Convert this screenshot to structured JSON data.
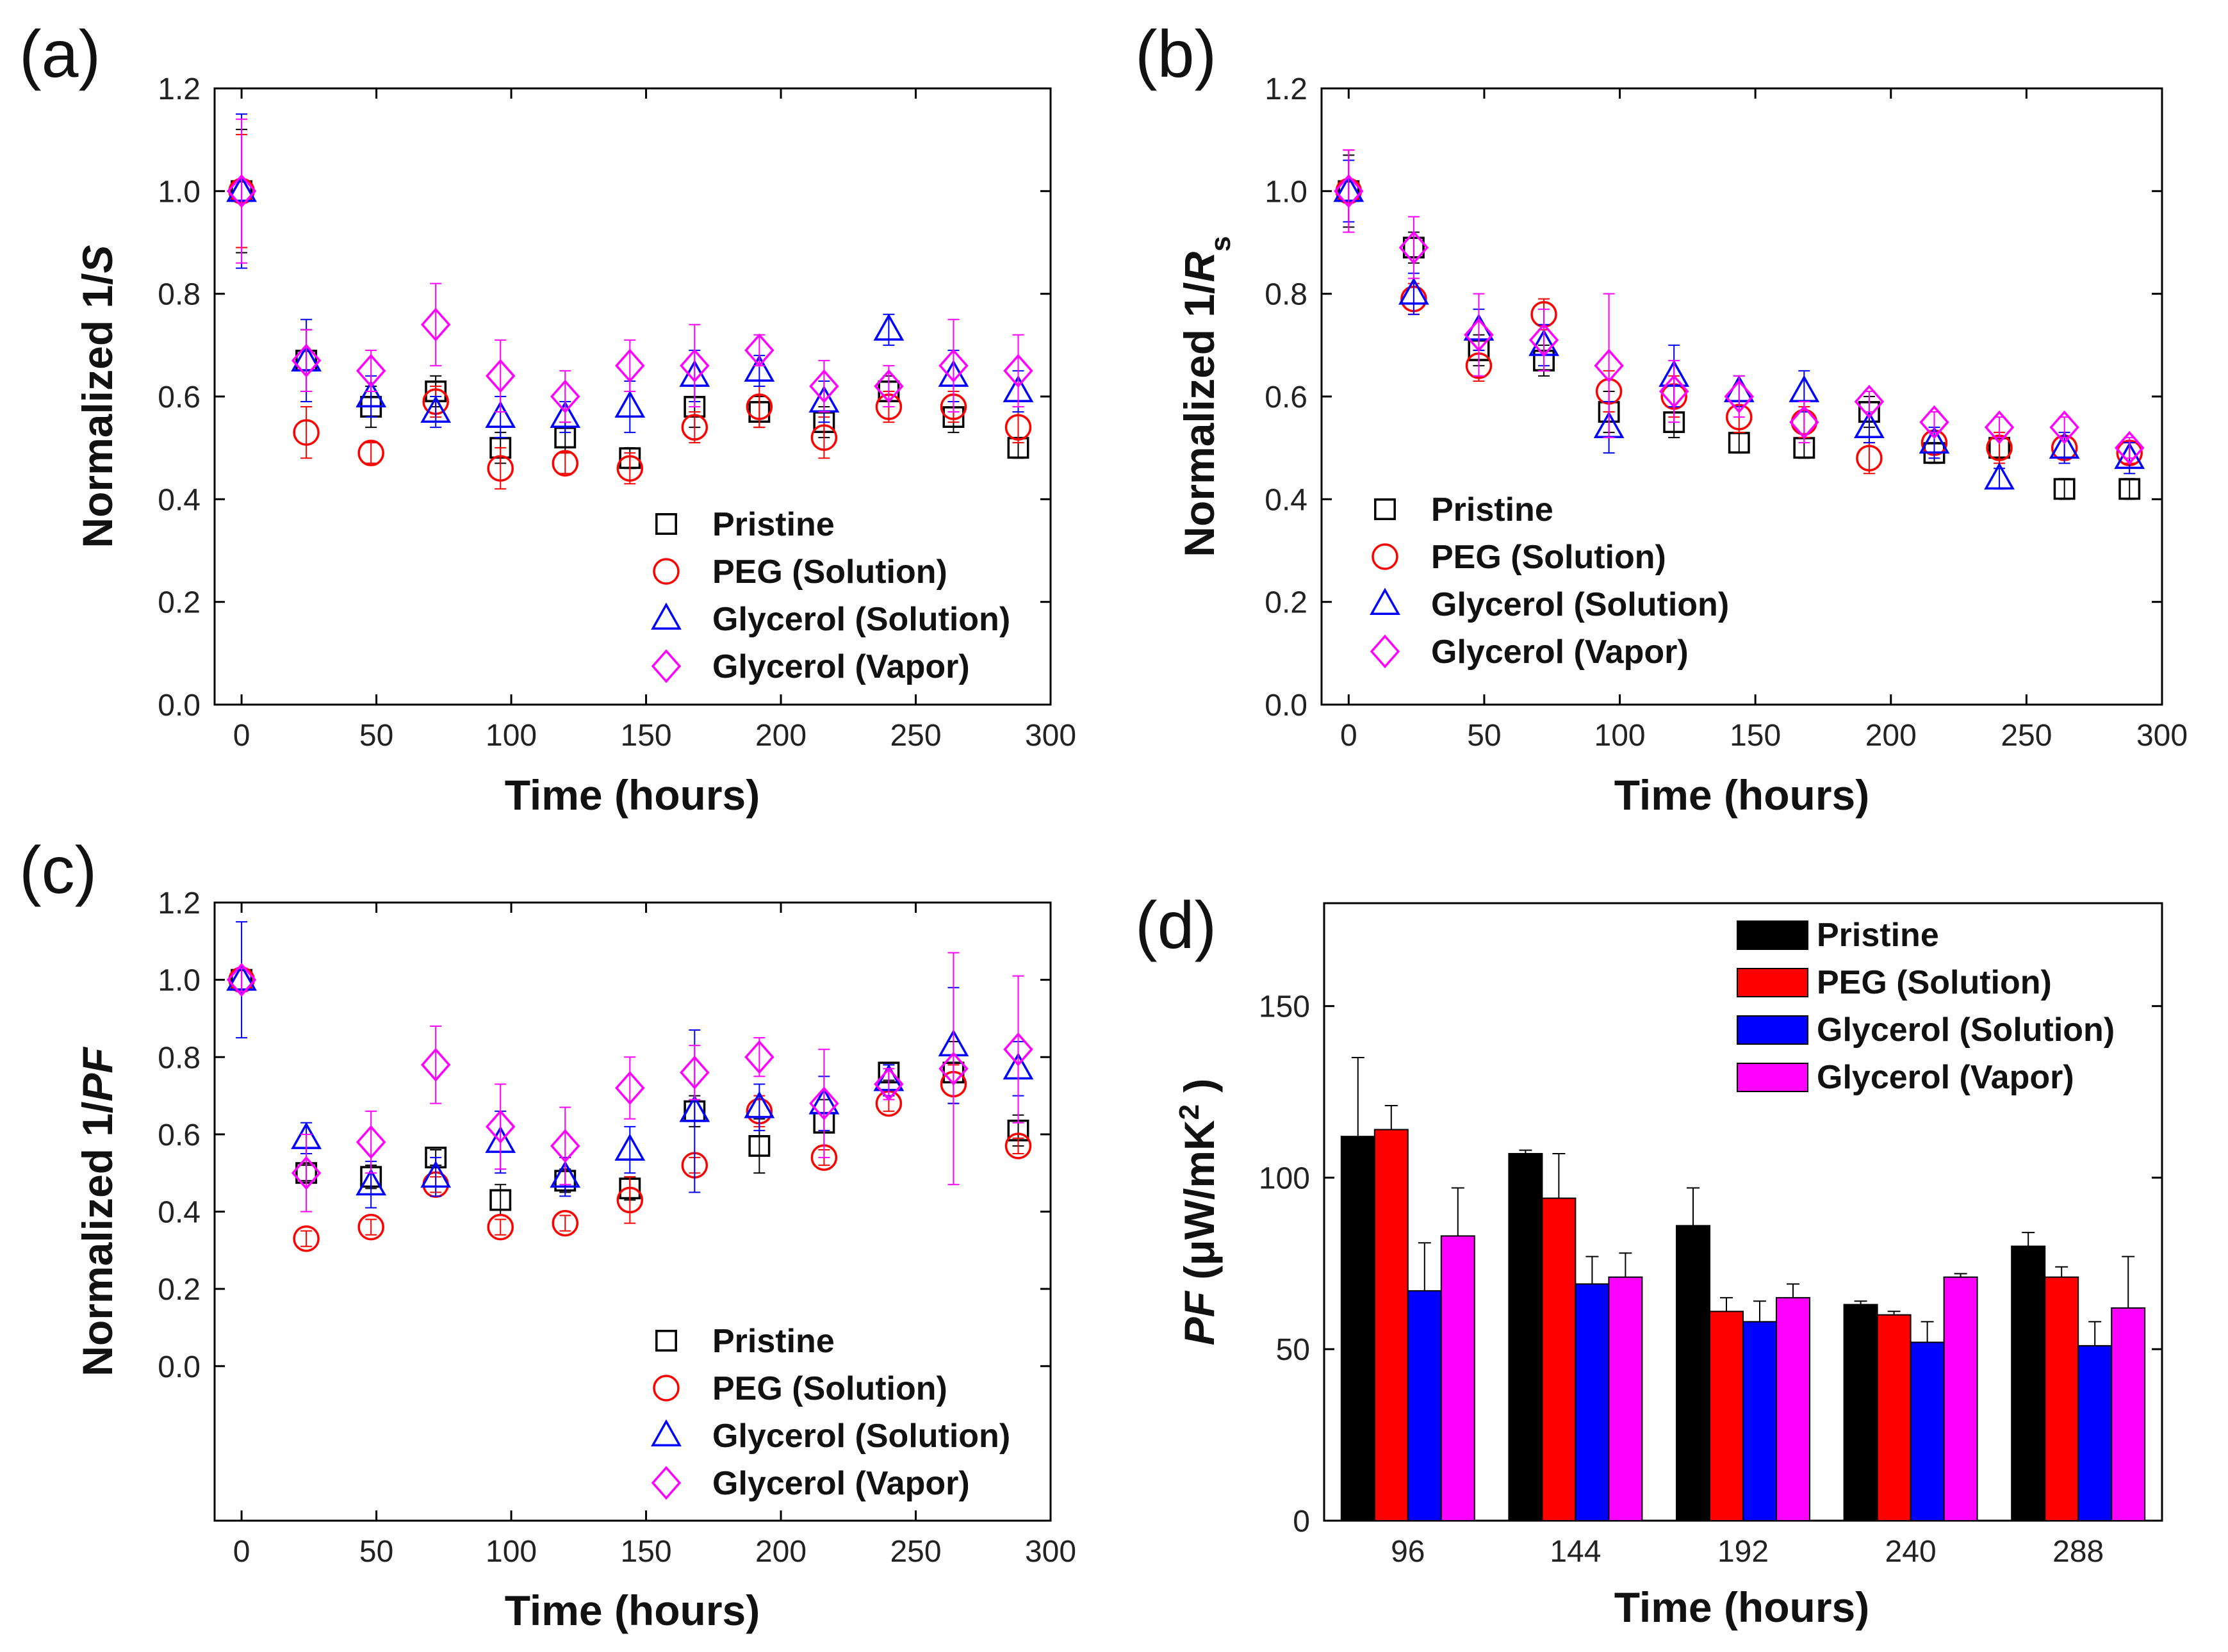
{
  "chart_data": [
    {
      "panel": "(a)",
      "type": "scatter",
      "ylabel": "Normalized 1/S",
      "ylabel_parts": [
        "Normalized 1/",
        "S",
        ""
      ],
      "xlabel": "Time (hours)",
      "xlim": [
        -10,
        300
      ],
      "ylim": [
        0,
        1.2
      ],
      "xticks": [
        "0",
        "50",
        "100",
        "150",
        "200",
        "250",
        "300"
      ],
      "yticks": [
        "0.0",
        "0.2",
        "0.4",
        "0.6",
        "0.8",
        "1.0",
        "1.2"
      ],
      "legend_position": "bottom-right",
      "x": [
        0,
        24,
        48,
        72,
        96,
        120,
        144,
        168,
        192,
        216,
        240,
        264,
        288
      ],
      "series": [
        {
          "name": "Pristine",
          "marker": "square",
          "color": "#000000",
          "values": [
            1.0,
            0.67,
            0.58,
            0.61,
            0.5,
            0.52,
            0.48,
            0.58,
            0.57,
            0.55,
            0.61,
            0.56,
            0.5
          ],
          "errors": [
            0.12,
            0.06,
            0.04,
            0.03,
            0.03,
            0.03,
            0.02,
            0.04,
            0.03,
            0.03,
            0.03,
            0.03,
            0.02
          ]
        },
        {
          "name": "PEG (Solution)",
          "marker": "circle",
          "color": "#ff0000",
          "values": [
            1.0,
            0.53,
            0.49,
            0.59,
            0.46,
            0.47,
            0.46,
            0.54,
            0.58,
            0.52,
            0.58,
            0.58,
            0.54
          ],
          "errors": [
            0.11,
            0.05,
            0.02,
            0.03,
            0.04,
            0.02,
            0.03,
            0.03,
            0.04,
            0.04,
            0.03,
            0.03,
            0.03
          ]
        },
        {
          "name": "Glycerol (Solution)",
          "marker": "triangle",
          "color": "#0000ff",
          "values": [
            1.0,
            0.67,
            0.6,
            0.57,
            0.56,
            0.56,
            0.58,
            0.64,
            0.65,
            0.59,
            0.73,
            0.64,
            0.61
          ],
          "errors": [
            0.15,
            0.08,
            0.04,
            0.03,
            0.04,
            0.03,
            0.05,
            0.05,
            0.03,
            0.04,
            0.03,
            0.05,
            0.04
          ]
        },
        {
          "name": "Glycerol (Vapor)",
          "marker": "diamond",
          "color": "#ff00ff",
          "values": [
            1.0,
            0.67,
            0.65,
            0.74,
            0.64,
            0.6,
            0.66,
            0.66,
            0.69,
            0.62,
            0.62,
            0.66,
            0.65
          ],
          "errors": [
            0.14,
            0.06,
            0.04,
            0.08,
            0.07,
            0.05,
            0.05,
            0.08,
            0.03,
            0.05,
            0.04,
            0.09,
            0.07
          ]
        }
      ]
    },
    {
      "panel": "(b)",
      "type": "scatter",
      "ylabel": "Normalized 1/Rs",
      "ylabel_parts": [
        "Normalized 1/",
        "R",
        "s"
      ],
      "xlabel": "Time (hours)",
      "xlim": [
        -10,
        300
      ],
      "ylim": [
        0,
        1.2
      ],
      "xticks": [
        "0",
        "50",
        "100",
        "150",
        "200",
        "250",
        "300"
      ],
      "yticks": [
        "0.0",
        "0.2",
        "0.4",
        "0.6",
        "0.8",
        "1.0",
        "1.2"
      ],
      "legend_position": "bottom-left",
      "x": [
        0,
        24,
        48,
        72,
        96,
        120,
        144,
        168,
        192,
        216,
        240,
        264,
        288
      ],
      "series": [
        {
          "name": "Pristine",
          "marker": "square",
          "color": "#000000",
          "values": [
            1.0,
            0.89,
            0.69,
            0.67,
            0.57,
            0.55,
            0.51,
            0.5,
            0.57,
            0.49,
            0.5,
            0.42,
            0.42
          ],
          "errors": [
            0.07,
            0.03,
            0.03,
            0.03,
            0.04,
            0.03,
            0.02,
            0.02,
            0.03,
            0.02,
            0.02,
            0.02,
            0.02
          ]
        },
        {
          "name": "PEG (Solution)",
          "marker": "circle",
          "color": "#ff0000",
          "values": [
            1.0,
            0.79,
            0.66,
            0.76,
            0.61,
            0.6,
            0.56,
            0.55,
            0.48,
            0.51,
            0.5,
            0.5,
            0.49
          ],
          "errors": [
            0.08,
            0.03,
            0.03,
            0.03,
            0.04,
            0.04,
            0.03,
            0.03,
            0.03,
            0.02,
            0.03,
            0.02,
            0.02
          ]
        },
        {
          "name": "Glycerol (Solution)",
          "marker": "triangle",
          "color": "#0000ff",
          "values": [
            1.0,
            0.8,
            0.73,
            0.7,
            0.54,
            0.64,
            0.61,
            0.61,
            0.54,
            0.51,
            0.44,
            0.5,
            0.48
          ],
          "errors": [
            0.06,
            0.04,
            0.04,
            0.04,
            0.05,
            0.06,
            0.03,
            0.04,
            0.03,
            0.03,
            0.02,
            0.03,
            0.03
          ]
        },
        {
          "name": "Glycerol (Vapor)",
          "marker": "diamond",
          "color": "#ff00ff",
          "values": [
            1.0,
            0.89,
            0.72,
            0.71,
            0.66,
            0.61,
            0.6,
            0.55,
            0.59,
            0.55,
            0.54,
            0.54,
            0.5
          ],
          "errors": [
            0.08,
            0.06,
            0.08,
            0.06,
            0.14,
            0.06,
            0.04,
            0.04,
            0.02,
            0.02,
            0.02,
            0.02,
            0.02
          ]
        }
      ]
    },
    {
      "panel": "(c)",
      "type": "scatter",
      "ylabel": "Normalized 1/PF",
      "ylabel_parts": [
        "Normalized 1/",
        "PF",
        ""
      ],
      "xlabel": "Time (hours)",
      "xlim": [
        -10,
        300
      ],
      "ylim": [
        -0.4,
        1.2
      ],
      "xticks": [
        "0",
        "50",
        "100",
        "150",
        "200",
        "250",
        "300"
      ],
      "yticks": [
        "0.0",
        "0.2",
        "0.4",
        "0.6",
        "0.8",
        "1.0",
        "1.2"
      ],
      "ytick_values": [
        0.0,
        0.2,
        0.4,
        0.6,
        0.8,
        1.0,
        1.2
      ],
      "legend_position": "bottom-right",
      "x": [
        0,
        24,
        48,
        72,
        96,
        120,
        144,
        168,
        192,
        216,
        240,
        264,
        288
      ],
      "series": [
        {
          "name": "Pristine",
          "marker": "square",
          "color": "#000000",
          "values": [
            1.0,
            0.5,
            0.49,
            0.54,
            0.43,
            0.48,
            0.46,
            0.66,
            0.57,
            0.63,
            0.76,
            0.76,
            0.61
          ],
          "errors": [
            0.03,
            0.02,
            0.03,
            0.02,
            0.04,
            0.03,
            0.03,
            0.04,
            0.07,
            0.06,
            0.02,
            0.08,
            0.04
          ]
        },
        {
          "name": "PEG (Solution)",
          "marker": "circle",
          "color": "#ff0000",
          "values": [
            1.0,
            0.33,
            0.36,
            0.47,
            0.36,
            0.37,
            0.43,
            0.52,
            0.66,
            0.54,
            0.68,
            0.73,
            0.57
          ],
          "errors": [
            0.03,
            0.02,
            0.02,
            0.02,
            0.02,
            0.02,
            0.06,
            0.02,
            0.04,
            0.02,
            0.02,
            0.05,
            0.02
          ]
        },
        {
          "name": "Glycerol (Solution)",
          "marker": "triangle",
          "color": "#0000ff",
          "values": [
            1.0,
            0.59,
            0.47,
            0.49,
            0.58,
            0.49,
            0.56,
            0.66,
            0.67,
            0.68,
            0.74,
            0.83,
            0.77
          ],
          "errors": [
            0.15,
            0.04,
            0.06,
            0.05,
            0.08,
            0.05,
            0.06,
            0.21,
            0.06,
            0.07,
            0.04,
            0.15,
            0.07
          ]
        },
        {
          "name": "Glycerol (Vapor)",
          "marker": "diamond",
          "color": "#ff00ff",
          "values": [
            1.0,
            0.5,
            0.58,
            0.78,
            0.62,
            0.57,
            0.72,
            0.76,
            0.8,
            0.68,
            0.73,
            0.77,
            0.82
          ],
          "errors": [
            0.03,
            0.1,
            0.08,
            0.1,
            0.11,
            0.1,
            0.08,
            0.07,
            0.05,
            0.14,
            0.04,
            0.3,
            0.19
          ]
        }
      ]
    },
    {
      "panel": "(d)",
      "type": "bar",
      "ylabel": "PF (μW/mK²)",
      "ylabel_parts": [
        "PF",
        " (μW/mK",
        "2",
        " )"
      ],
      "xlabel": "Time (hours)",
      "ylim": [
        0,
        180
      ],
      "yticks": [
        "0",
        "50",
        "100",
        "150"
      ],
      "categories": [
        "96",
        "144",
        "192",
        "240",
        "288"
      ],
      "legend_position": "top-right",
      "series": [
        {
          "name": "Pristine",
          "color": "#000000",
          "values": [
            112,
            107,
            86,
            63,
            80
          ],
          "errors": [
            23,
            1,
            11,
            1,
            4
          ]
        },
        {
          "name": "PEG (Solution)",
          "color": "#ff0000",
          "values": [
            114,
            94,
            61,
            60,
            71
          ],
          "errors": [
            7,
            13,
            4,
            1,
            3
          ]
        },
        {
          "name": "Glycerol (Solution)",
          "color": "#0000ff",
          "values": [
            67,
            69,
            58,
            52,
            51
          ],
          "errors": [
            14,
            8,
            6,
            6,
            7
          ]
        },
        {
          "name": "Glycerol (Vapor)",
          "color": "#ff00ff",
          "values": [
            83,
            71,
            65,
            71,
            62
          ],
          "errors": [
            14,
            7,
            4,
            1,
            15
          ]
        }
      ]
    }
  ]
}
